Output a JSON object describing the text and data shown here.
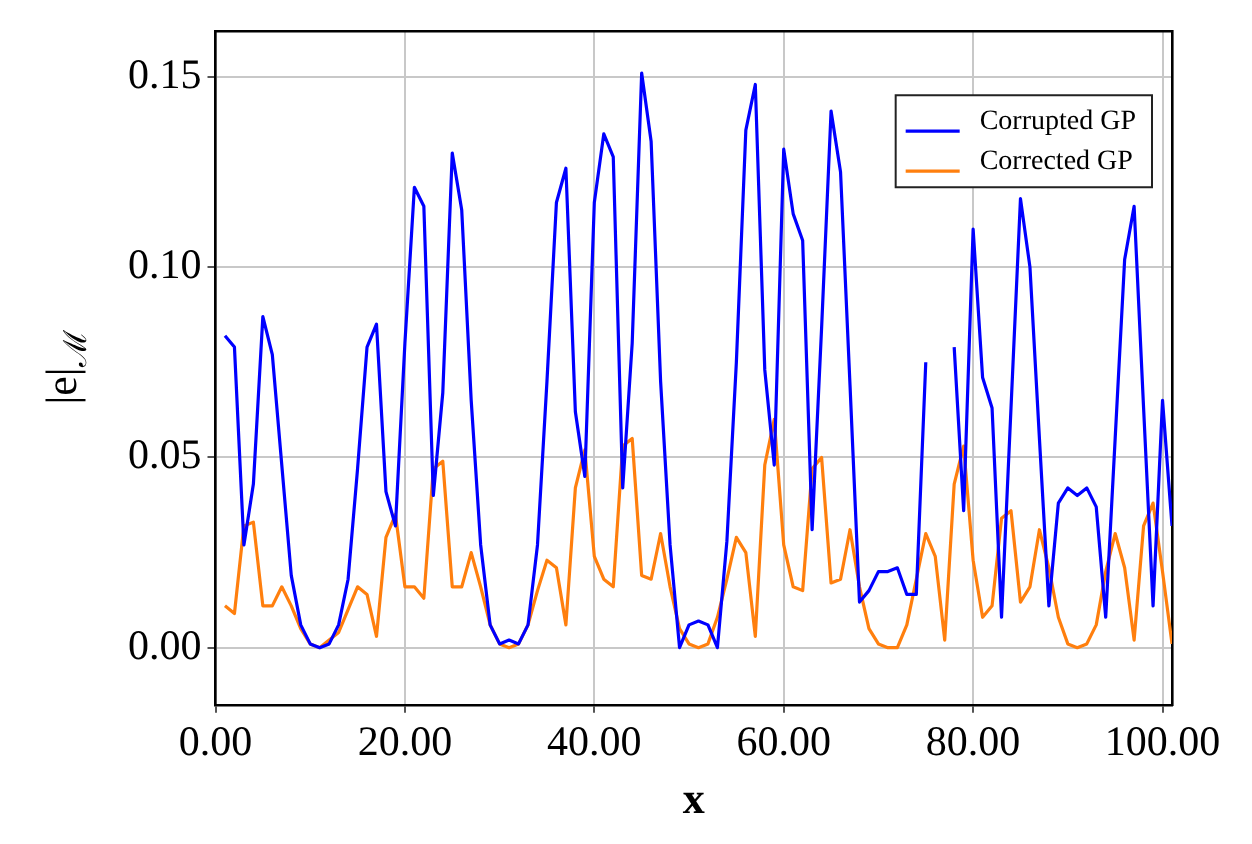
{
  "chart_data": {
    "type": "line",
    "xlabel": "x",
    "ylabel": "|e|$_{ℳ}$",
    "x": [
      1,
      2,
      3,
      4,
      5,
      6,
      7,
      8,
      9,
      10,
      11,
      12,
      13,
      14,
      15,
      16,
      17,
      18,
      19,
      20,
      21,
      22,
      23,
      24,
      25,
      26,
      27,
      28,
      29,
      30,
      31,
      32,
      33,
      34,
      35,
      36,
      37,
      38,
      39,
      40,
      41,
      42,
      43,
      44,
      45,
      46,
      47,
      48,
      49,
      50,
      51,
      52,
      53,
      54,
      55,
      56,
      57,
      58,
      59,
      60,
      61,
      62,
      63,
      64,
      65,
      66,
      67,
      68,
      69,
      70,
      71,
      72,
      73,
      74,
      75,
      76,
      77,
      78,
      79,
      80,
      81,
      82,
      83,
      84,
      85,
      86,
      87,
      88,
      89,
      90,
      91,
      92,
      93,
      94,
      95,
      96,
      97,
      98,
      99,
      100,
      101
    ],
    "series": [
      {
        "name": "Corrupted GP",
        "color": "#0000ff",
        "values": [
          0.082,
          0.079,
          0.027,
          0.043,
          0.087,
          0.077,
          0.048,
          0.019,
          0.006,
          0.001,
          0,
          0.001,
          0.006,
          0.018,
          0.047,
          0.079,
          0.085,
          0.041,
          0.032,
          0.08,
          0.121,
          0.116,
          0.04,
          0.067,
          0.13,
          0.115,
          0.065,
          0.027,
          0.006,
          0.001,
          0.002,
          0.001,
          0.006,
          0.027,
          0.07,
          0.117,
          0.126,
          0.062,
          0.045,
          0.117,
          0.135,
          0.129,
          0.042,
          0.08,
          0.151,
          0.133,
          0.07,
          0.027,
          0,
          0.006,
          0.007,
          0.006,
          0,
          0.028,
          0.075,
          0.136,
          0.148,
          0.073,
          0.048,
          0.131,
          0.114,
          0.107,
          0.031,
          0.084,
          0.141,
          0.125,
          0.069,
          0.012,
          0.015,
          0.02,
          0.02,
          0.021,
          0.014,
          0.014,
          0.075,
          null,
          null,
          0.079,
          0.036,
          0.11,
          0.071,
          0.063,
          0.008,
          0.063,
          0.118,
          0.1,
          0.055,
          0.011,
          0.038,
          0.042,
          0.04,
          0.042,
          0.037,
          0.008,
          0.055,
          0.102,
          0.116,
          0.063,
          0.011,
          0.065,
          0.032
        ]
      },
      {
        "name": "Corrected GP",
        "color": "#ff7f0e",
        "values": [
          0.011,
          0.009,
          0.032,
          0.033,
          0.011,
          0.011,
          0.016,
          0.011,
          0.005,
          0.001,
          0,
          0.002,
          0.004,
          0.01,
          0.016,
          0.014,
          0.003,
          0.029,
          0.035,
          0.016,
          0.016,
          0.013,
          0.047,
          0.049,
          0.016,
          0.016,
          0.025,
          0.016,
          0.006,
          0.001,
          0,
          0.001,
          0.006,
          0.015,
          0.023,
          0.021,
          0.006,
          0.042,
          0.052,
          0.024,
          0.018,
          0.016,
          0.053,
          0.055,
          0.019,
          0.018,
          0.03,
          0.016,
          0.005,
          0.001,
          0,
          0.001,
          0.008,
          0.018,
          0.029,
          0.025,
          0.003,
          0.048,
          0.06,
          0.027,
          0.016,
          0.015,
          0.047,
          0.05,
          0.017,
          0.018,
          0.031,
          0.016,
          0.005,
          0.001,
          0,
          0,
          0.006,
          0.018,
          0.03,
          0.024,
          0.002,
          0.043,
          0.053,
          0.023,
          0.008,
          0.011,
          0.034,
          0.036,
          0.012,
          0.016,
          0.031,
          0.021,
          0.008,
          0.001,
          0,
          0.001,
          0.006,
          0.02,
          0.03,
          0.021,
          0.002,
          0.032,
          0.038,
          0.02,
          0.001
        ]
      }
    ],
    "xlim": [
      0,
      101
    ],
    "ylim": [
      -0.015,
      0.162
    ],
    "xticks": [
      {
        "value": 0,
        "label": "0.00"
      },
      {
        "value": 20,
        "label": "20.00"
      },
      {
        "value": 40,
        "label": "40.00"
      },
      {
        "value": 60,
        "label": "60.00"
      },
      {
        "value": 80,
        "label": "80.00"
      },
      {
        "value": 100,
        "label": "100.00"
      }
    ],
    "yticks": [
      {
        "value": 0,
        "label": "0.00"
      },
      {
        "value": 0.05,
        "label": "0.05"
      },
      {
        "value": 0.1,
        "label": "0.10"
      },
      {
        "value": 0.15,
        "label": "0.15"
      }
    ],
    "grid": true,
    "legend": "top right",
    "marker": "none",
    "line_style": "solid"
  }
}
